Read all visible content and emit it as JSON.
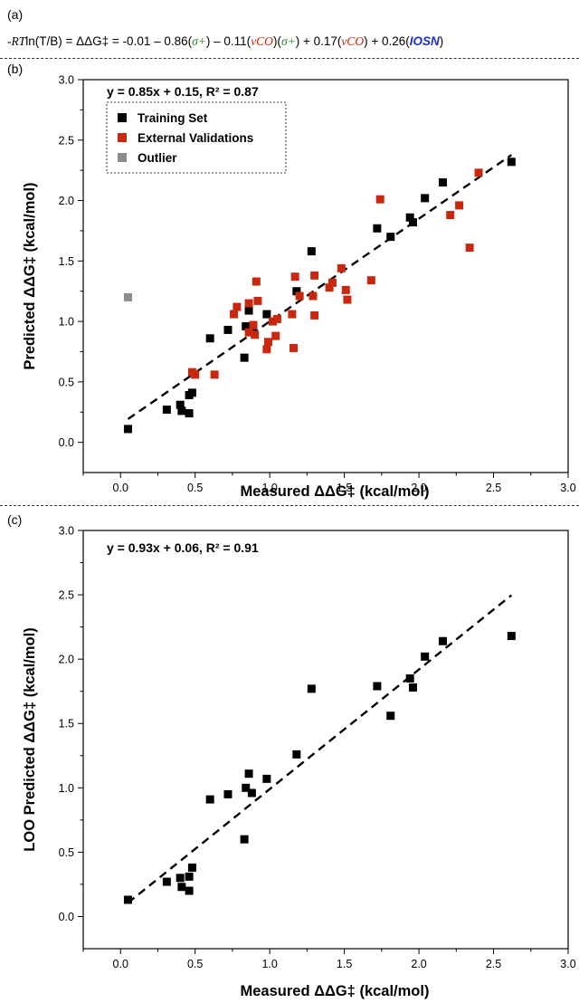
{
  "panel_labels": {
    "a": "(a)",
    "b": "(b)",
    "c": "(c)"
  },
  "equation": {
    "lhs_rt": "-RT",
    "lhs_rest": "ln(T/B) = ΔΔG‡ = -0.01 – 0.86(",
    "sigma1": "σ+",
    "p2": ") – 0.11(",
    "nu1": "νCO",
    "p3": ")(",
    "sigma2": "σ+",
    "p4": ") + 0.17(",
    "nu2": "νCO",
    "p5": ") + 0.26(",
    "losn": "IOSN",
    "p6": ")"
  },
  "colors": {
    "training": "#000000",
    "validation": "#c8280f",
    "outlier": "#8c8c8c",
    "green": "#1e8a1e",
    "red": "#cc2200",
    "blue": "#1c2ec8"
  },
  "chart_data": [
    {
      "type": "scatter",
      "panel": "(b)",
      "xlabel": "Measured ΔΔG‡ (kcal/mol)",
      "ylabel": "Predicted ΔΔG‡ (kcal/mol)",
      "xlim": [
        -0.25,
        3.0
      ],
      "ylim": [
        -0.25,
        3.0
      ],
      "xticks": [
        "0.0",
        "0.5",
        "1.0",
        "1.5",
        "2.0",
        "2.5",
        "3.0"
      ],
      "yticks": [
        "0.0",
        "0.5",
        "1.0",
        "1.5",
        "2.0",
        "2.5",
        "3.0"
      ],
      "fit_annotation": "y = 0.85x + 0.15, R² = 0.87",
      "fit": {
        "slope": 0.85,
        "intercept": 0.15,
        "x_range": [
          0.05,
          2.62
        ]
      },
      "legend": {
        "position": "top-left",
        "entries": [
          "Training Set",
          "External Validations",
          "Outlier"
        ]
      },
      "series": [
        {
          "name": "Training Set",
          "color": "#000000",
          "points": [
            [
              0.05,
              0.11
            ],
            [
              0.31,
              0.27
            ],
            [
              0.4,
              0.31
            ],
            [
              0.41,
              0.26
            ],
            [
              0.46,
              0.24
            ],
            [
              0.46,
              0.39
            ],
            [
              0.48,
              0.41
            ],
            [
              0.6,
              0.86
            ],
            [
              0.72,
              0.93
            ],
            [
              0.83,
              0.7
            ],
            [
              0.84,
              0.96
            ],
            [
              0.86,
              1.09
            ],
            [
              0.88,
              0.94
            ],
            [
              0.98,
              1.06
            ],
            [
              1.18,
              1.25
            ],
            [
              1.28,
              1.58
            ],
            [
              1.72,
              1.77
            ],
            [
              1.81,
              1.7
            ],
            [
              1.94,
              1.86
            ],
            [
              1.96,
              1.82
            ],
            [
              2.04,
              2.02
            ],
            [
              2.16,
              2.15
            ],
            [
              2.62,
              2.32
            ]
          ]
        },
        {
          "name": "External Validations",
          "color": "#c8280f",
          "points": [
            [
              0.48,
              0.58
            ],
            [
              0.5,
              0.56
            ],
            [
              0.63,
              0.56
            ],
            [
              0.76,
              1.06
            ],
            [
              0.78,
              1.12
            ],
            [
              0.86,
              1.15
            ],
            [
              0.86,
              0.91
            ],
            [
              0.89,
              0.97
            ],
            [
              0.9,
              0.89
            ],
            [
              0.91,
              1.33
            ],
            [
              0.92,
              1.17
            ],
            [
              0.98,
              0.77
            ],
            [
              0.99,
              0.83
            ],
            [
              1.02,
              1.0
            ],
            [
              1.04,
              0.88
            ],
            [
              1.05,
              1.02
            ],
            [
              1.15,
              1.06
            ],
            [
              1.16,
              0.78
            ],
            [
              1.17,
              1.37
            ],
            [
              1.2,
              1.21
            ],
            [
              1.29,
              1.21
            ],
            [
              1.3,
              1.38
            ],
            [
              1.3,
              1.05
            ],
            [
              1.4,
              1.28
            ],
            [
              1.42,
              1.32
            ],
            [
              1.48,
              1.44
            ],
            [
              1.51,
              1.26
            ],
            [
              1.52,
              1.18
            ],
            [
              1.68,
              1.34
            ],
            [
              1.74,
              2.01
            ],
            [
              2.21,
              1.88
            ],
            [
              2.27,
              1.96
            ],
            [
              2.34,
              1.61
            ],
            [
              2.4,
              2.23
            ]
          ]
        },
        {
          "name": "Outlier",
          "color": "#8c8c8c",
          "points": [
            [
              0.05,
              1.2
            ]
          ]
        }
      ]
    },
    {
      "type": "scatter",
      "panel": "(c)",
      "xlabel": "Measured  ΔΔG‡ (kcal/mol)",
      "ylabel": "LOO Predicted  ΔΔG‡ (kcal/mol)",
      "xlim": [
        -0.25,
        3.0
      ],
      "ylim": [
        -0.25,
        3.0
      ],
      "xticks": [
        "0.0",
        "0.5",
        "1.0",
        "1.5",
        "2.0",
        "2.5",
        "3.0"
      ],
      "yticks": [
        "0.0",
        "0.5",
        "1.0",
        "1.5",
        "2.0",
        "2.5",
        "3.0"
      ],
      "fit_annotation": "y = 0.93x + 0.06, R² = 0.91",
      "fit": {
        "slope": 0.93,
        "intercept": 0.06,
        "x_range": [
          0.05,
          2.62
        ]
      },
      "series": [
        {
          "color": "#000000",
          "points": [
            [
              0.05,
              0.13
            ],
            [
              0.31,
              0.27
            ],
            [
              0.4,
              0.3
            ],
            [
              0.41,
              0.23
            ],
            [
              0.46,
              0.2
            ],
            [
              0.46,
              0.31
            ],
            [
              0.48,
              0.38
            ],
            [
              0.6,
              0.91
            ],
            [
              0.72,
              0.95
            ],
            [
              0.83,
              0.6
            ],
            [
              0.84,
              1.0
            ],
            [
              0.86,
              1.11
            ],
            [
              0.88,
              0.96
            ],
            [
              0.98,
              1.07
            ],
            [
              1.18,
              1.26
            ],
            [
              1.28,
              1.77
            ],
            [
              1.72,
              1.79
            ],
            [
              1.81,
              1.56
            ],
            [
              1.94,
              1.85
            ],
            [
              1.96,
              1.78
            ],
            [
              2.04,
              2.02
            ],
            [
              2.16,
              2.14
            ],
            [
              2.62,
              2.18
            ]
          ]
        }
      ]
    }
  ]
}
